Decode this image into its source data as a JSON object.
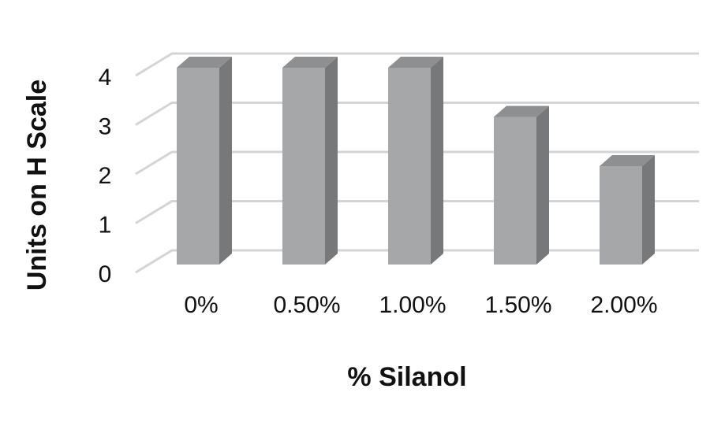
{
  "chart_data": {
    "type": "bar",
    "categories": [
      "0%",
      "0.50%",
      "1.00%",
      "1.50%",
      "2.00%"
    ],
    "values": [
      4,
      4,
      4,
      3,
      2
    ],
    "xlabel": "% Silanol",
    "ylabel": "Units on H Scale",
    "ylim": [
      0,
      4
    ],
    "yticks": [
      "0",
      "1",
      "2",
      "3",
      "4"
    ],
    "grid": true,
    "three_d": true,
    "colors": {
      "bar_front": "#a6a7a9",
      "bar_side": "#77787a",
      "bar_top": "#8e8f91",
      "grid": "#d4d4d4"
    }
  }
}
